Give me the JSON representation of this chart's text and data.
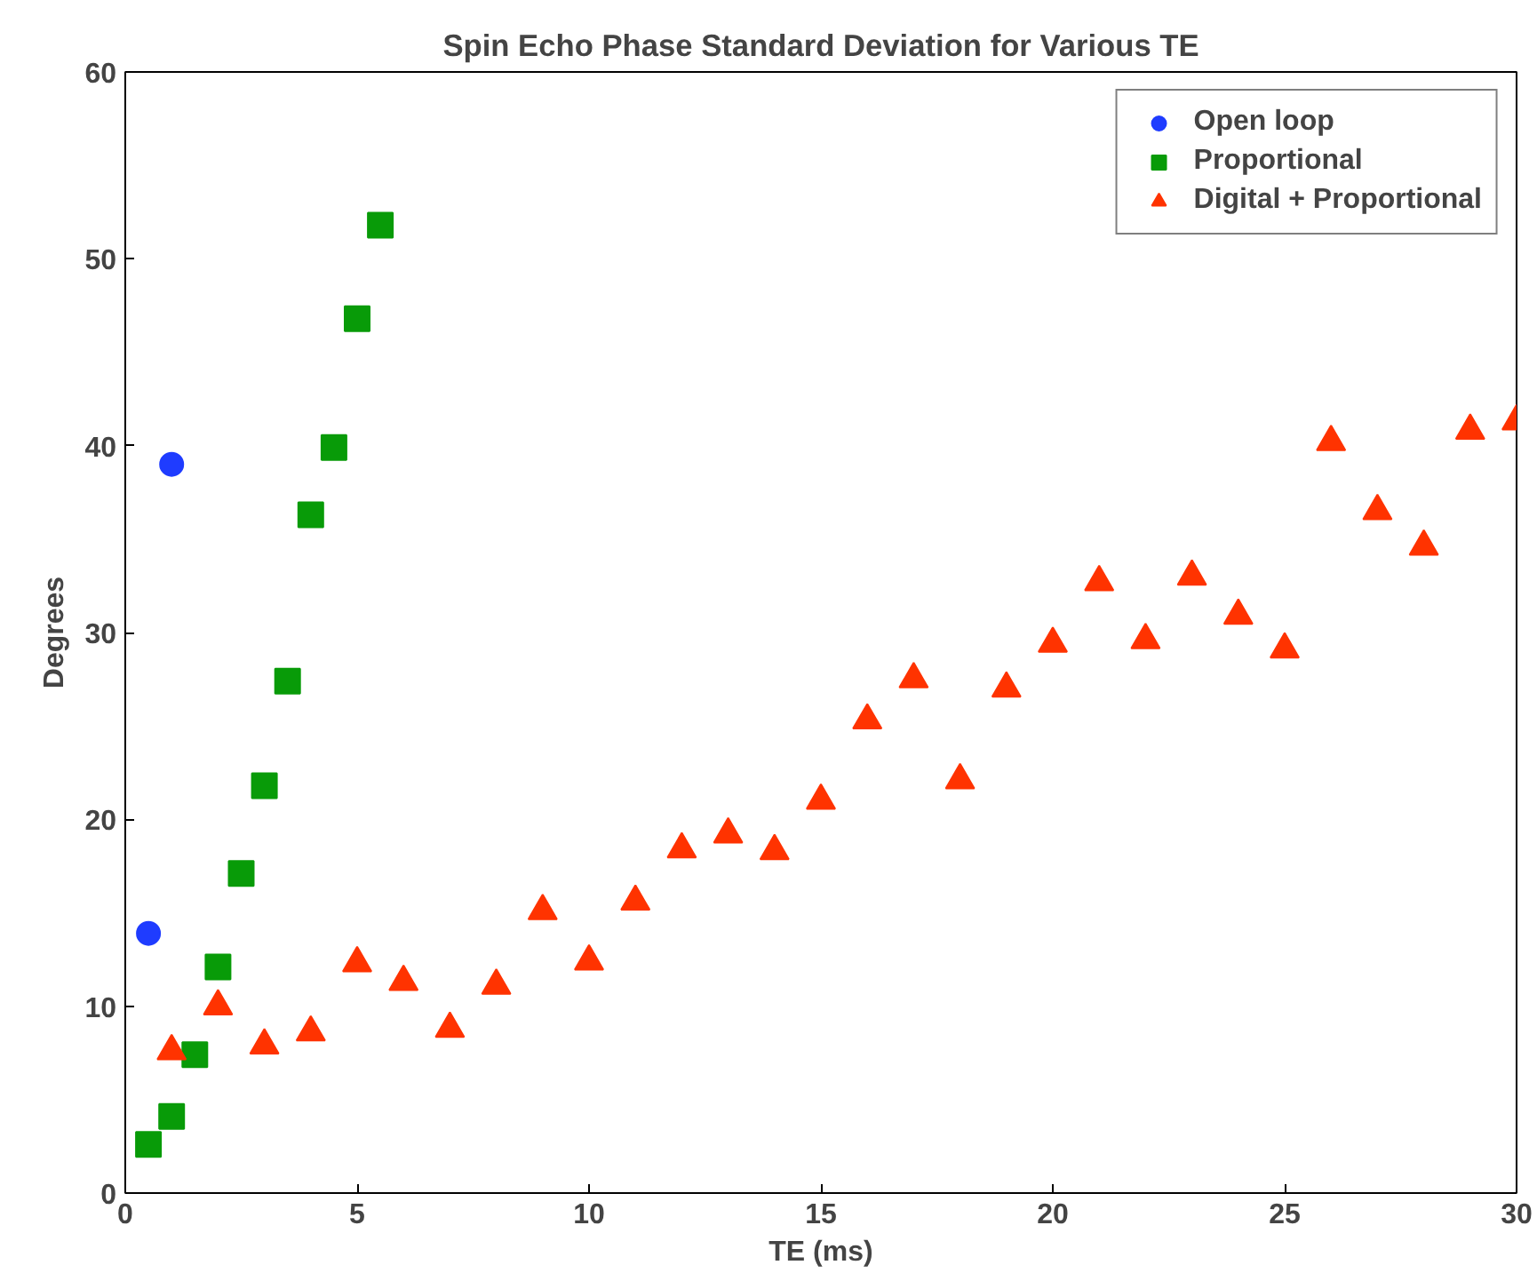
{
  "chart_data": {
    "type": "scatter",
    "title": "Spin Echo Phase Standard Deviation for Various TE",
    "xlabel": "TE (ms)",
    "ylabel": "Degrees",
    "xlim": [
      0,
      30
    ],
    "ylim": [
      0,
      60
    ],
    "xticks": [
      0,
      5,
      10,
      15,
      20,
      25,
      30
    ],
    "yticks": [
      0,
      10,
      20,
      30,
      40,
      50,
      60
    ],
    "grid": false,
    "legend": "top right",
    "series": [
      {
        "name": "Open loop",
        "color": "#1f3cff",
        "marker": "circle",
        "x": [
          0.5,
          1
        ],
        "values": [
          13.9,
          39.0
        ]
      },
      {
        "name": "Proportional",
        "color": "#089b08",
        "marker": "square",
        "x": [
          0.5,
          1,
          1.5,
          2,
          2.5,
          3,
          3.5,
          4,
          4.5,
          5,
          5.5
        ],
        "values": [
          2.6,
          4.1,
          7.4,
          12.1,
          17.1,
          21.8,
          27.4,
          36.3,
          39.9,
          46.8,
          51.8
        ]
      },
      {
        "name": "Digital + Proportional",
        "color": "#ff3300",
        "marker": "triangle",
        "x": [
          1,
          2,
          3,
          4,
          5,
          6,
          7,
          8,
          9,
          10,
          11,
          12,
          13,
          14,
          15,
          16,
          17,
          18,
          19,
          20,
          21,
          22,
          23,
          24,
          25,
          26,
          27,
          28,
          29,
          30
        ],
        "values": [
          7.6,
          10.0,
          7.9,
          8.6,
          12.3,
          11.3,
          8.8,
          11.1,
          15.1,
          12.4,
          15.6,
          18.4,
          19.2,
          18.3,
          21.0,
          25.3,
          27.5,
          22.1,
          27.0,
          29.4,
          32.7,
          29.6,
          33.0,
          30.9,
          29.1,
          40.2,
          36.5,
          34.6,
          40.8,
          41.3
        ]
      }
    ]
  }
}
